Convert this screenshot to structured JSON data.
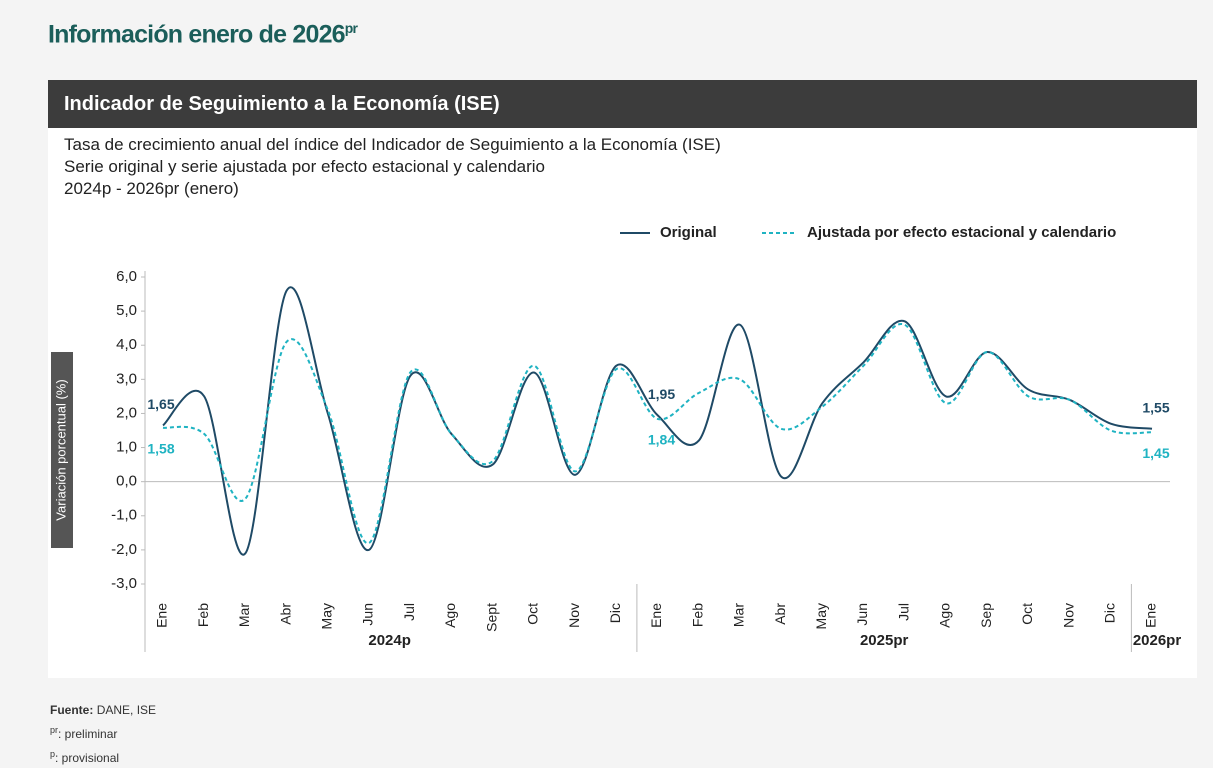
{
  "page_title": "Información enero de 2026",
  "page_title_sup": "pr",
  "chart_data": {
    "type": "line",
    "title": "Indicador de Seguimiento a la Economía (ISE)",
    "subtitle": [
      "Tasa de crecimiento anual del índice del Indicador de Seguimiento a la Economía (ISE)",
      "Serie original y serie ajustada por efecto estacional y calendario",
      "2024p - 2026pr (enero)"
    ],
    "y_label": "Variación porcentual (%)",
    "categories": [
      "Ene",
      "Feb",
      "Mar",
      "Abr",
      "May",
      "Jun",
      "Jul",
      "Ago",
      "Sept",
      "Oct",
      "Nov",
      "Dic",
      "Ene",
      "Feb",
      "Mar",
      "Abr",
      "May",
      "Jun",
      "Jul",
      "Ago",
      "Sep",
      "Oct",
      "Nov",
      "Dic",
      "Ene"
    ],
    "groups": [
      "2024p",
      "2025pr",
      "2026pr"
    ],
    "series": [
      {
        "name": "Original",
        "color": "#1f4a66",
        "dash": false,
        "values": [
          1.65,
          2.5,
          -2.1,
          5.6,
          2.0,
          -2.0,
          3.1,
          1.4,
          0.5,
          3.2,
          0.2,
          3.4,
          1.95,
          1.2,
          4.6,
          0.15,
          2.3,
          3.5,
          4.7,
          2.5,
          3.8,
          2.7,
          2.4,
          1.7,
          1.55
        ],
        "value_labels": [
          "1,65",
          null,
          null,
          null,
          null,
          null,
          null,
          null,
          null,
          null,
          null,
          null,
          "1,95",
          null,
          null,
          null,
          null,
          null,
          null,
          null,
          null,
          null,
          null,
          null,
          "1,55"
        ]
      },
      {
        "name": "Ajustada por efecto estacional y calendario",
        "color": "#1fb3c2",
        "dash": true,
        "values": [
          1.58,
          1.4,
          -0.5,
          4.1,
          2.1,
          -1.8,
          3.2,
          1.4,
          0.6,
          3.4,
          0.3,
          3.3,
          1.84,
          2.6,
          3.0,
          1.55,
          2.2,
          3.4,
          4.6,
          2.3,
          3.8,
          2.5,
          2.4,
          1.5,
          1.45
        ],
        "value_labels": [
          "1,58",
          null,
          null,
          null,
          null,
          null,
          null,
          null,
          null,
          null,
          null,
          null,
          "1,84",
          null,
          null,
          null,
          null,
          null,
          null,
          null,
          null,
          null,
          null,
          null,
          "1,45"
        ]
      }
    ],
    "ylim": [
      -3,
      6
    ],
    "yticks": [
      {
        "value": -3,
        "label": "-3,0"
      },
      {
        "value": -2,
        "label": "-2,0"
      },
      {
        "value": -1,
        "label": "-1,0"
      },
      {
        "value": 0,
        "label": "0,0"
      },
      {
        "value": 1,
        "label": "1,0"
      },
      {
        "value": 2,
        "label": "2,0"
      },
      {
        "value": 3,
        "label": "3,0"
      },
      {
        "value": 4,
        "label": "4,0"
      },
      {
        "value": 5,
        "label": "5,0"
      },
      {
        "value": 6,
        "label": "6,0"
      }
    ],
    "legend": "top-right"
  },
  "footer": {
    "source_label": "Fuente:",
    "source": "DANE, ISE",
    "notes": [
      {
        "mark": "pr",
        "text": ": preliminar"
      },
      {
        "mark": "p",
        "text": ": provisional"
      }
    ]
  }
}
